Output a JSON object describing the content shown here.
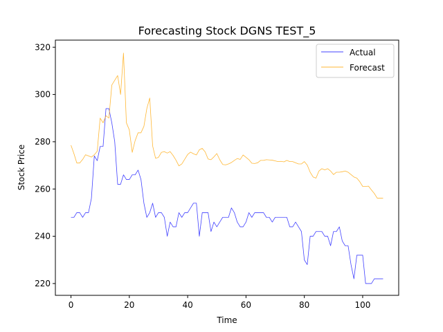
{
  "chart_data": {
    "type": "line",
    "title": "Forecasting Stock DGNS TEST_5",
    "xlabel": "Time",
    "ylabel": "Stock Price",
    "xlim": [
      -5.35,
      112.35
    ],
    "ylim": [
      215,
      323
    ],
    "xticks": [
      0,
      20,
      40,
      60,
      80,
      100
    ],
    "yticks": [
      220,
      240,
      260,
      280,
      300,
      320
    ],
    "grid": false,
    "legend_position": "top-right",
    "series": [
      {
        "name": "Actual",
        "color": "#0000ff",
        "values": [
          248,
          248,
          250,
          250,
          248,
          250,
          250,
          256,
          274,
          272,
          278,
          278,
          294,
          294,
          288,
          280,
          262,
          262,
          266,
          264,
          264,
          266,
          266,
          268,
          264,
          254,
          248,
          250,
          254,
          248,
          250,
          250,
          248,
          240,
          246,
          244,
          244,
          250,
          248,
          250,
          250,
          252,
          254,
          254,
          240,
          250,
          250,
          250,
          242,
          246,
          244,
          246,
          248,
          248,
          248,
          252,
          250,
          246,
          244,
          244,
          246,
          250,
          248,
          250,
          250,
          250,
          250,
          248,
          248,
          246,
          248,
          248,
          248,
          248,
          248,
          244,
          244,
          246,
          244,
          242,
          230,
          228,
          240,
          240,
          242,
          242,
          242,
          240,
          240,
          236,
          242,
          242,
          244,
          238,
          236,
          236,
          228,
          222,
          232,
          232,
          232,
          220,
          220,
          220,
          222,
          222,
          222,
          222
        ]
      },
      {
        "name": "Forecast",
        "color": "#ffa500",
        "values": [
          278.5,
          275,
          271,
          271,
          272.5,
          274.5,
          274,
          273.5,
          274.5,
          276,
          290,
          288,
          291,
          290,
          304,
          306,
          308,
          300,
          317.5,
          288,
          285,
          275.5,
          280.5,
          283.8,
          283.8,
          286.5,
          294,
          298.5,
          278.2,
          273,
          273.4,
          275.5,
          275.8,
          275.2,
          275.8,
          274.2,
          272.2,
          269.8,
          270.6,
          272.6,
          274.6,
          275.6,
          274.9,
          274.4,
          276.6,
          277.2,
          275.7,
          272.7,
          272.4,
          273.6,
          275,
          272.4,
          270.4,
          270.2,
          270.6,
          271.2,
          272.1,
          272.9,
          272.5,
          274.4,
          273.4,
          272.4,
          270.9,
          270.8,
          271.1,
          272.1,
          272.1,
          272.4,
          272.3,
          272.2,
          271.9,
          271.6,
          271.7,
          271.5,
          272.1,
          271.6,
          271.6,
          271.1,
          270.6,
          270.6,
          271.6,
          270.1,
          267.1,
          265.1,
          264.6,
          267.6,
          268.6,
          268.1,
          268.6,
          267.6,
          266.1,
          267.1,
          267.1,
          267.3,
          267.6,
          267.1,
          266.1,
          265.1,
          264.6,
          263.1,
          261.1,
          261.1,
          261.2,
          259.6,
          258.1,
          256.1,
          256.1,
          256.1
        ]
      }
    ]
  }
}
